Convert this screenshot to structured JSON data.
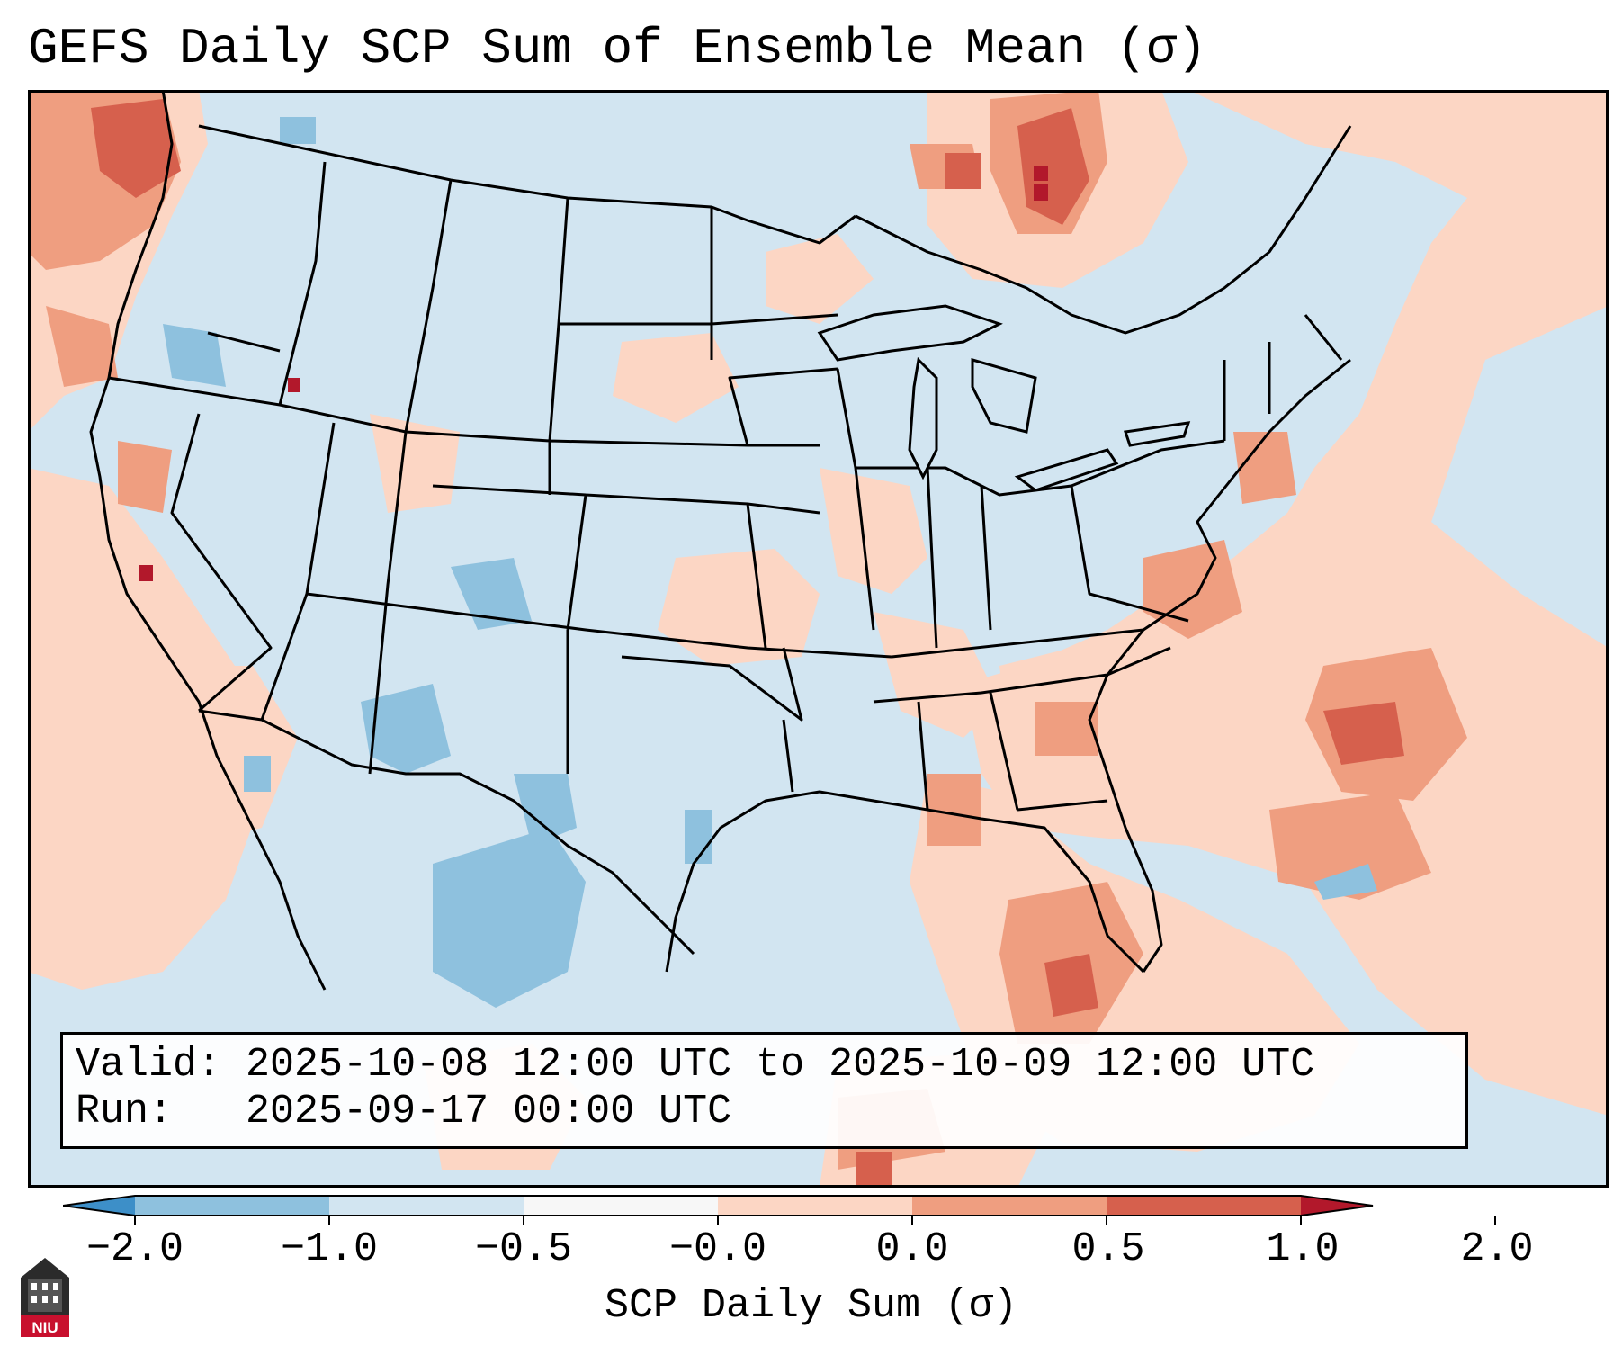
{
  "title": "GEFS Daily SCP Sum of Ensemble Mean (σ)",
  "info": {
    "valid_label": "Valid:",
    "valid_value": "2025-10-08 12:00 UTC to 2025-10-09 12:00 UTC",
    "run_label": "Run:",
    "run_value": "2025-09-17 00:00 UTC"
  },
  "colorbar": {
    "label": "SCP Daily Sum (σ)",
    "ticks": [
      "−2.0",
      "−1.0",
      "−0.5",
      "−0.0",
      "0.0",
      "0.5",
      "1.0",
      "2.0"
    ],
    "colors": [
      "#3d8fc8",
      "#8ec1de",
      "#d2e5f1",
      "#f7f7f7",
      "#fcd6c4",
      "#ef9e80",
      "#d6604d",
      "#b2182b"
    ]
  },
  "colors": {
    "map_background": "#d2e5f1",
    "anomaly_light": "#fcd6c4",
    "anomaly_medium": "#ef9e80",
    "anomaly_strong": "#d6604d",
    "anomaly_extreme": "#b2182b",
    "negative_light": "#8ec1de"
  },
  "logo": {
    "text": "NIU",
    "icon": "niu-logo-icon"
  },
  "map": {
    "region": "CONUS",
    "projection": "Lambert Conformal"
  }
}
